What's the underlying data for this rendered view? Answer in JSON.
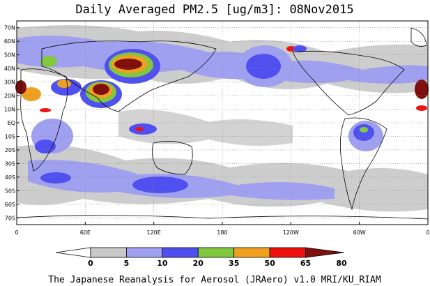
{
  "title": "Daily Averaged PM2.5 [ug/m3]: 08Nov2015",
  "footer": "The Japanese Reanalysis for Aerosol (JRAero) v1.0 MRI/KU_RIAM",
  "lat_labels": [
    "70N",
    "60N",
    "50N",
    "40N",
    "30N",
    "20N",
    "10N",
    "EQ",
    "10S",
    "20S",
    "30S",
    "40S",
    "50S",
    "60S",
    "70S"
  ],
  "lon_labels": [
    "0",
    "60E",
    "120E",
    "180",
    "120W",
    "60W",
    "0"
  ],
  "colorbar": {
    "labels": [
      "0",
      "5",
      "10",
      "20",
      "35",
      "50",
      "65",
      "80"
    ],
    "colors": [
      "#ffffff",
      "#c8c8c8",
      "#a0a0f0",
      "#5050f0",
      "#80c840",
      "#f0a020",
      "#f01010",
      "#801010"
    ]
  },
  "map_colors": {
    "level1": "#c8c8c8",
    "level2": "#a0a0f0",
    "level3": "#5050f0",
    "level4": "#80c840",
    "level5": "#f0a020",
    "level6": "#f01010",
    "level7": "#801010"
  }
}
